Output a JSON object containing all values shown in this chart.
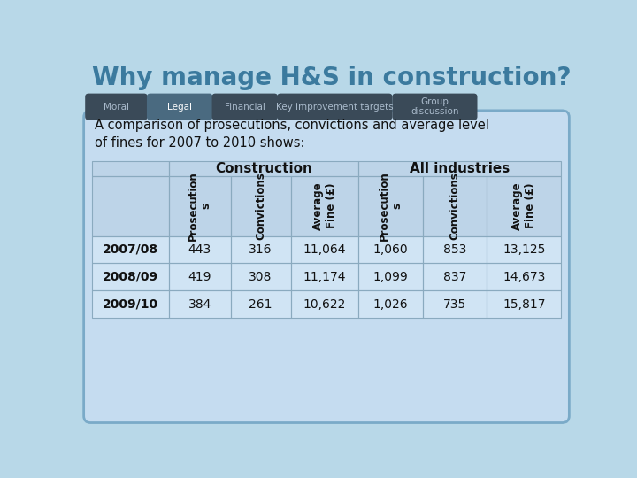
{
  "title": "Why manage H&S in construction?",
  "title_color": "#3B7A9E",
  "bg_color": "#B8D8E8",
  "tab_labels": [
    "Moral",
    "Legal",
    "Financial",
    "Key improvement targets",
    "Group\ndiscussion"
  ],
  "tab_active": 1,
  "content_bg": "#C5DCF0",
  "content_border": "#7AAAC8",
  "intro_text": "A comparison of prosecutions, convictions and average level\nof fines for 2007 to 2010 shows:",
  "col_headers_group1": "Construction",
  "col_headers_group2": "All industries",
  "col_sub_headers": [
    "Prosecution\ns",
    "Convictions",
    "Average\nFine (£)",
    "Prosecution\ns",
    "Convictions",
    "Average\nFine (£)"
  ],
  "row_labels": [
    "2007/08",
    "2008/09",
    "2009/10"
  ],
  "table_data": [
    [
      "443",
      "316",
      "11,064",
      "1,060",
      "853",
      "13,125"
    ],
    [
      "419",
      "308",
      "11,174",
      "1,099",
      "837",
      "14,673"
    ],
    [
      "384",
      "261",
      "10,622",
      "1,026",
      "735",
      "15,817"
    ]
  ],
  "table_bg": "#D0E4F4",
  "table_border": "#8AAABF",
  "header_bg": "#BDD4E8",
  "tab_colors": [
    "#3A4A58",
    "#4A6A80",
    "#3A4A58",
    "#3A4A58",
    "#3A4A58"
  ],
  "tab_text_colors": [
    "#AABBCC",
    "#FFFFFF",
    "#AABBCC",
    "#AABBCC",
    "#AABBCC"
  ]
}
